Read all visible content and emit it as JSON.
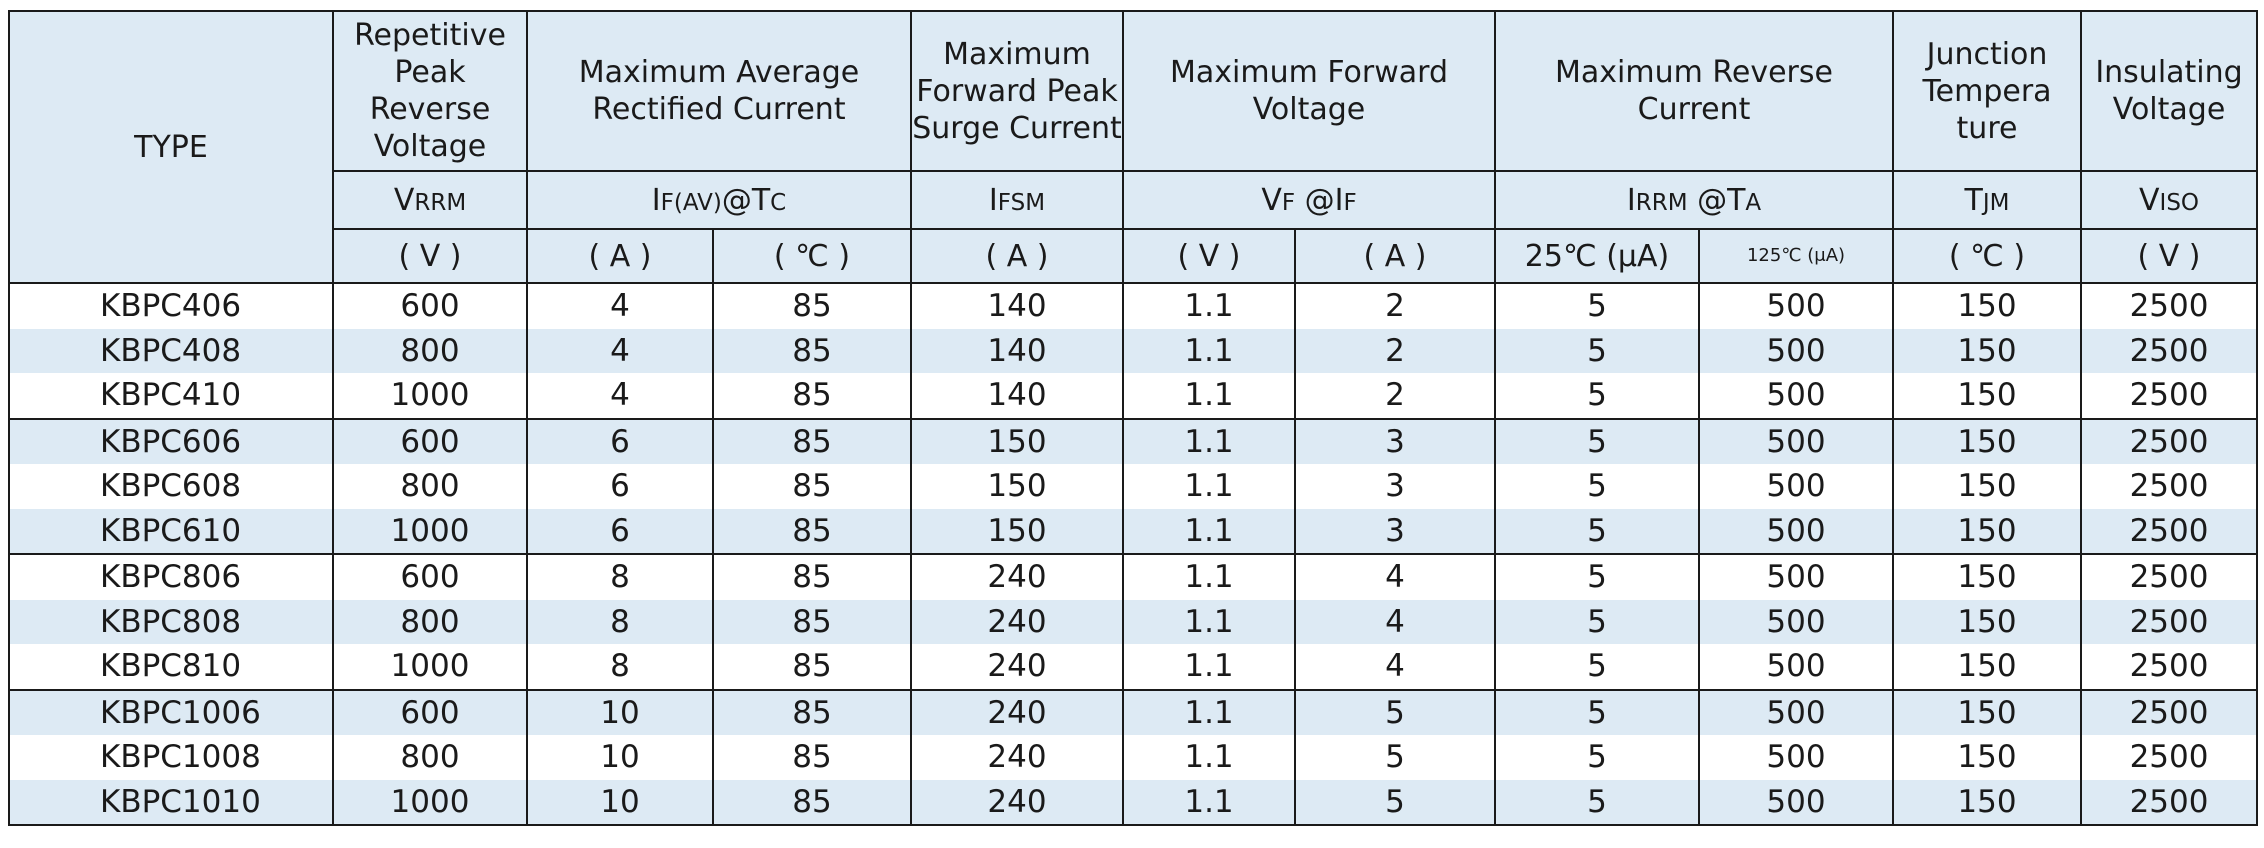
{
  "headers": {
    "type": "TYPE",
    "vrrm_title": "Repetitive Peak Reverse Voltage",
    "ifav_title": "Maximum Average Rectified Current",
    "ifsm_title": "Maximum Forward Peak Surge Current",
    "vf_title": "Maximum Forward Voltage",
    "irrm_title": "Maximum Reverse Current",
    "tj_title": "Junction Tempera ture",
    "viso_title": "Insulating Voltage"
  },
  "symbols": {
    "vrrm_main": "V",
    "vrrm_sub": "RRM",
    "ifav_main": "I",
    "ifav_sub": "F(AV)",
    "ifav_at": "@T",
    "ifav_at_sub": "C",
    "ifsm_main": "I",
    "ifsm_sub": "FSM",
    "vf_main": "V",
    "vf_sub": "F",
    "vf_at": " @I",
    "vf_at_sub": "F",
    "irrm_main": "I",
    "irrm_sub": "RRM",
    "irrm_at": " @T",
    "irrm_at_sub": "A",
    "tj_main": "T",
    "tj_sub": "JM",
    "viso_main": "V",
    "viso_sub": "ISO"
  },
  "units": {
    "vrrm": "( V )",
    "ifav_a": "( A )",
    "ifav_c": "( ℃ )",
    "ifsm": "( A )",
    "vf_v": "( V )",
    "vf_a": "( A )",
    "ir_25": "25℃ (μA)",
    "ir_125": "125℃ (μA)",
    "tj": "( ℃ )",
    "viso": "( V )"
  },
  "rows": [
    [
      "KBPC406",
      "600",
      "4",
      "85",
      "140",
      "1.1",
      "2",
      "5",
      "500",
      "150",
      "2500"
    ],
    [
      "KBPC408",
      "800",
      "4",
      "85",
      "140",
      "1.1",
      "2",
      "5",
      "500",
      "150",
      "2500"
    ],
    [
      "KBPC410",
      "1000",
      "4",
      "85",
      "140",
      "1.1",
      "2",
      "5",
      "500",
      "150",
      "2500"
    ],
    [
      "KBPC606",
      "600",
      "6",
      "85",
      "150",
      "1.1",
      "3",
      "5",
      "500",
      "150",
      "2500"
    ],
    [
      "KBPC608",
      "800",
      "6",
      "85",
      "150",
      "1.1",
      "3",
      "5",
      "500",
      "150",
      "2500"
    ],
    [
      "KBPC610",
      "1000",
      "6",
      "85",
      "150",
      "1.1",
      "3",
      "5",
      "500",
      "150",
      "2500"
    ],
    [
      "KBPC806",
      "600",
      "8",
      "85",
      "240",
      "1.1",
      "4",
      "5",
      "500",
      "150",
      "2500"
    ],
    [
      "KBPC808",
      "800",
      "8",
      "85",
      "240",
      "1.1",
      "4",
      "5",
      "500",
      "150",
      "2500"
    ],
    [
      "KBPC810",
      "1000",
      "8",
      "85",
      "240",
      "1.1",
      "4",
      "5",
      "500",
      "150",
      "2500"
    ],
    [
      "KBPC1006",
      "600",
      "10",
      "85",
      "240",
      "1.1",
      "5",
      "5",
      "500",
      "150",
      "2500"
    ],
    [
      "KBPC1008",
      "800",
      "10",
      "85",
      "240",
      "1.1",
      "5",
      "5",
      "500",
      "150",
      "2500"
    ],
    [
      "KBPC1010",
      "1000",
      "10",
      "85",
      "240",
      "1.1",
      "5",
      "5",
      "500",
      "150",
      "2500"
    ]
  ],
  "colors": {
    "header_bg": "#ddeaf4",
    "shade_bg": "#ddeaf4",
    "border": "#1a1a1a"
  }
}
